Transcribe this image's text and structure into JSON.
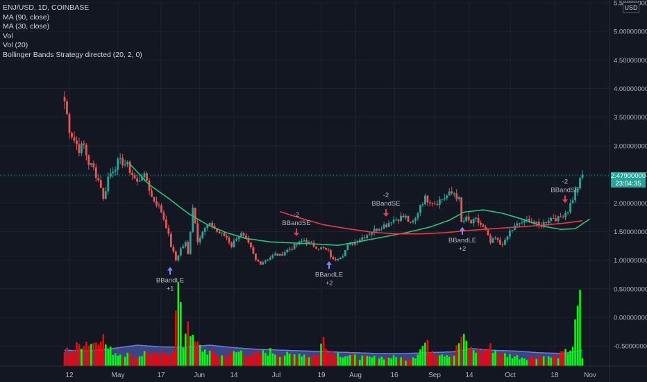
{
  "legend": {
    "symbol": "ENJ/USD, 1D, COINBASE",
    "ma90": "MA (90, close)",
    "ma30": "MA (30, close)",
    "vol": "Vol",
    "vol20": "Vol (20)",
    "bb": "Bollinger Bands Strategy directed (20, 2, 0)"
  },
  "currency": "USD",
  "last_price": "2.47900000",
  "countdown": "23:04:35",
  "colors": {
    "background": "#131722",
    "up": "#26a69a",
    "down": "#ef5350",
    "ma90": "#f23645",
    "ma30": "#27c47a",
    "vol_up": "#00ff00",
    "vol_down": "#ff0000",
    "vol_ma": "#5b6bd6",
    "grid": "#1f2330",
    "axis_text": "#b2b5be",
    "signal_long": "#7b8bff",
    "signal_short": "#f23645"
  },
  "chart_data": {
    "type": "candlestick",
    "y_axis": {
      "ticks": [
        "5.50000000",
        "5.00000000",
        "4.50000000",
        "4.00000000",
        "3.50000000",
        "3.00000000",
        "2.50000000",
        "2.00000000",
        "1.50000000",
        "1.00000000",
        "0.50000000",
        "0.00000000",
        "-0.50000000"
      ],
      "range": [
        -0.85,
        5.5
      ]
    },
    "x_axis": {
      "ticks": [
        "12",
        "May",
        "17",
        "Jun",
        "14",
        "Jul",
        "19",
        "Aug",
        "16",
        "Sep",
        "14",
        "Oct",
        "18",
        "Nov"
      ]
    },
    "annotations": [
      {
        "label": "BBandLE",
        "qty": "+1",
        "direction": "long",
        "price": 0.88
      },
      {
        "label": "BBandSE",
        "qty": "-2",
        "direction": "short",
        "price": 1.42
      },
      {
        "label": "BBandLE",
        "qty": "+2",
        "direction": "long",
        "price": 0.98
      },
      {
        "label": "BBandSE",
        "qty": "-2",
        "direction": "short",
        "price": 1.76
      },
      {
        "label": "BBandLE",
        "qty": "+2",
        "direction": "long",
        "price": 1.58
      },
      {
        "label": "BBandSE",
        "qty": "-2",
        "direction": "short",
        "price": 2.0
      }
    ],
    "price_keys": [
      [
        0,
        3.78
      ],
      [
        2,
        3.3
      ],
      [
        4,
        3.1
      ],
      [
        6,
        2.95
      ],
      [
        8,
        3.0
      ],
      [
        10,
        2.7
      ],
      [
        12,
        2.6
      ],
      [
        14,
        2.4
      ],
      [
        15,
        2.3
      ],
      [
        16,
        2.05
      ],
      [
        18,
        2.45
      ],
      [
        20,
        2.6
      ],
      [
        22,
        2.7
      ],
      [
        24,
        2.72
      ],
      [
        26,
        2.65
      ],
      [
        28,
        2.5
      ],
      [
        30,
        2.35
      ],
      [
        32,
        2.5
      ],
      [
        34,
        2.4
      ],
      [
        36,
        2.1
      ],
      [
        38,
        2.0
      ],
      [
        40,
        1.85
      ],
      [
        42,
        1.6
      ],
      [
        44,
        1.25
      ],
      [
        46,
        1.0
      ],
      [
        48,
        1.2
      ],
      [
        50,
        1.3
      ],
      [
        51,
        1.1
      ],
      [
        53,
        1.95
      ],
      [
        55,
        1.35
      ],
      [
        57,
        1.5
      ],
      [
        59,
        1.6
      ],
      [
        61,
        1.62
      ],
      [
        63,
        1.5
      ],
      [
        65,
        1.45
      ],
      [
        67,
        1.4
      ],
      [
        69,
        1.25
      ],
      [
        71,
        1.4
      ],
      [
        73,
        1.45
      ],
      [
        75,
        1.35
      ],
      [
        77,
        1.2
      ],
      [
        79,
        1.0
      ],
      [
        81,
        0.95
      ],
      [
        83,
        1.0
      ],
      [
        85,
        1.05
      ],
      [
        87,
        1.1
      ],
      [
        89,
        1.08
      ],
      [
        91,
        1.15
      ],
      [
        93,
        1.2
      ],
      [
        95,
        1.25
      ],
      [
        97,
        1.3
      ],
      [
        99,
        1.35
      ],
      [
        101,
        1.3
      ],
      [
        103,
        1.25
      ],
      [
        105,
        1.22
      ],
      [
        107,
        1.2
      ],
      [
        109,
        1.15
      ],
      [
        111,
        1.0
      ],
      [
        113,
        1.05
      ],
      [
        115,
        1.1
      ],
      [
        117,
        1.25
      ],
      [
        119,
        1.3
      ],
      [
        121,
        1.35
      ],
      [
        123,
        1.4
      ],
      [
        125,
        1.45
      ],
      [
        127,
        1.5
      ],
      [
        129,
        1.55
      ],
      [
        131,
        1.6
      ],
      [
        133,
        1.62
      ],
      [
        135,
        1.7
      ],
      [
        137,
        1.72
      ],
      [
        139,
        1.75
      ],
      [
        141,
        1.75
      ],
      [
        143,
        1.62
      ],
      [
        145,
        1.72
      ],
      [
        147,
        1.98
      ],
      [
        149,
        2.08
      ],
      [
        151,
        2.05
      ],
      [
        153,
        2.0
      ],
      [
        155,
        2.05
      ],
      [
        157,
        2.1
      ],
      [
        159,
        2.15
      ],
      [
        161,
        2.18
      ],
      [
        163,
        2.05
      ],
      [
        164,
        1.65
      ],
      [
        166,
        1.72
      ],
      [
        168,
        1.65
      ],
      [
        170,
        1.7
      ],
      [
        172,
        1.62
      ],
      [
        174,
        1.5
      ],
      [
        176,
        1.3
      ],
      [
        178,
        1.38
      ],
      [
        180,
        1.28
      ],
      [
        182,
        1.32
      ],
      [
        184,
        1.5
      ],
      [
        186,
        1.58
      ],
      [
        188,
        1.65
      ],
      [
        190,
        1.68
      ],
      [
        192,
        1.72
      ],
      [
        194,
        1.65
      ],
      [
        196,
        1.6
      ],
      [
        198,
        1.65
      ],
      [
        200,
        1.72
      ],
      [
        202,
        1.75
      ],
      [
        204,
        1.72
      ],
      [
        206,
        1.8
      ],
      [
        208,
        1.88
      ],
      [
        210,
        2.08
      ],
      [
        212,
        2.28
      ],
      [
        214,
        2.48
      ]
    ],
    "ma30_keys": [
      [
        27,
        2.68
      ],
      [
        35,
        2.32
      ],
      [
        43,
        2.08
      ],
      [
        51,
        1.82
      ],
      [
        59,
        1.62
      ],
      [
        67,
        1.48
      ],
      [
        75,
        1.38
      ],
      [
        85,
        1.32
      ],
      [
        95,
        1.3
      ],
      [
        105,
        1.28
      ],
      [
        113,
        1.26
      ],
      [
        121,
        1.32
      ],
      [
        131,
        1.4
      ],
      [
        141,
        1.48
      ],
      [
        151,
        1.58
      ],
      [
        159,
        1.7
      ],
      [
        165,
        1.84
      ],
      [
        173,
        1.88
      ],
      [
        181,
        1.82
      ],
      [
        189,
        1.72
      ],
      [
        197,
        1.6
      ],
      [
        205,
        1.54
      ],
      [
        211,
        1.55
      ],
      [
        217,
        1.72
      ]
    ],
    "ma90_keys": [
      [
        89,
        1.85
      ],
      [
        97,
        1.74
      ],
      [
        107,
        1.62
      ],
      [
        117,
        1.55
      ],
      [
        127,
        1.49
      ],
      [
        137,
        1.46
      ],
      [
        147,
        1.46
      ],
      [
        157,
        1.48
      ],
      [
        167,
        1.52
      ],
      [
        177,
        1.55
      ],
      [
        187,
        1.58
      ],
      [
        197,
        1.61
      ],
      [
        207,
        1.65
      ],
      [
        214,
        1.69
      ]
    ],
    "volume_keys": [
      [
        0,
        0.35
      ],
      [
        4,
        0.42
      ],
      [
        8,
        0.6
      ],
      [
        12,
        0.55
      ],
      [
        15,
        0.8
      ],
      [
        18,
        0.4
      ],
      [
        22,
        0.3
      ],
      [
        26,
        0.28
      ],
      [
        30,
        0.22
      ],
      [
        34,
        0.35
      ],
      [
        38,
        0.25
      ],
      [
        42,
        0.3
      ],
      [
        45,
        0.45
      ],
      [
        47,
        1.9
      ],
      [
        49,
        0.5
      ],
      [
        51,
        1.2
      ],
      [
        53,
        0.6
      ],
      [
        57,
        0.4
      ],
      [
        61,
        0.3
      ],
      [
        65,
        0.25
      ],
      [
        69,
        0.3
      ],
      [
        73,
        0.35
      ],
      [
        77,
        0.28
      ],
      [
        81,
        0.3
      ],
      [
        85,
        0.35
      ],
      [
        89,
        0.3
      ],
      [
        93,
        0.25
      ],
      [
        97,
        0.3
      ],
      [
        101,
        0.25
      ],
      [
        105,
        0.28
      ],
      [
        107,
        0.7
      ],
      [
        109,
        0.4
      ],
      [
        113,
        0.3
      ],
      [
        117,
        0.25
      ],
      [
        121,
        0.22
      ],
      [
        125,
        0.2
      ],
      [
        129,
        0.2
      ],
      [
        133,
        0.22
      ],
      [
        137,
        0.2
      ],
      [
        141,
        0.18
      ],
      [
        145,
        0.25
      ],
      [
        149,
        0.55
      ],
      [
        153,
        0.35
      ],
      [
        157,
        0.3
      ],
      [
        161,
        0.28
      ],
      [
        164,
        0.7
      ],
      [
        168,
        0.4
      ],
      [
        172,
        0.35
      ],
      [
        176,
        0.45
      ],
      [
        180,
        0.3
      ],
      [
        184,
        0.25
      ],
      [
        188,
        0.22
      ],
      [
        192,
        0.2
      ],
      [
        196,
        0.25
      ],
      [
        200,
        0.2
      ],
      [
        204,
        0.25
      ],
      [
        208,
        0.35
      ],
      [
        210,
        0.5
      ],
      [
        212,
        1.3
      ],
      [
        213,
        1.5
      ],
      [
        214,
        0.2
      ]
    ],
    "volume_ma_keys": [
      [
        0,
        0.38
      ],
      [
        10,
        0.36
      ],
      [
        20,
        0.42
      ],
      [
        30,
        0.5
      ],
      [
        40,
        0.46
      ],
      [
        50,
        0.45
      ],
      [
        60,
        0.5
      ],
      [
        70,
        0.44
      ],
      [
        80,
        0.4
      ],
      [
        90,
        0.38
      ],
      [
        100,
        0.36
      ],
      [
        110,
        0.34
      ],
      [
        120,
        0.32
      ],
      [
        130,
        0.3
      ],
      [
        140,
        0.3
      ],
      [
        150,
        0.32
      ],
      [
        160,
        0.34
      ],
      [
        168,
        0.42
      ],
      [
        176,
        0.38
      ],
      [
        186,
        0.36
      ],
      [
        196,
        0.32
      ],
      [
        206,
        0.3
      ],
      [
        214,
        0.38
      ]
    ]
  }
}
